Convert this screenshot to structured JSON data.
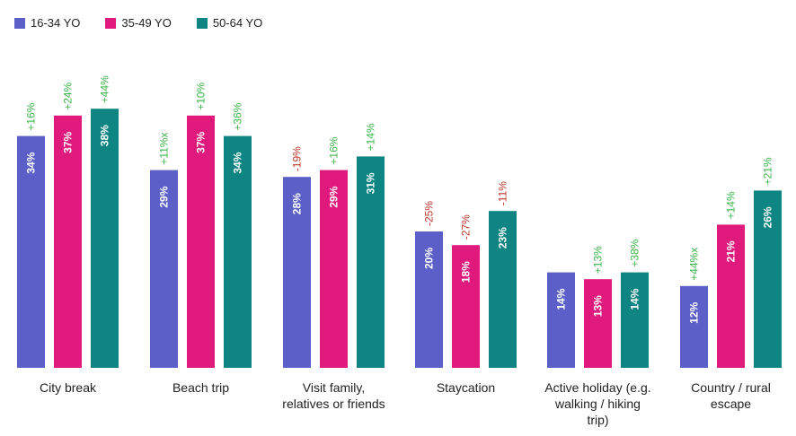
{
  "chart_data": {
    "type": "bar",
    "title": "",
    "xlabel": "",
    "ylabel": "",
    "ylim": [
      0,
      40
    ],
    "grid": false,
    "legend_placement": "top-left",
    "categories": [
      [
        "City break"
      ],
      [
        "Beach trip"
      ],
      [
        "Visit family,",
        "relatives or friends"
      ],
      [
        "Staycation"
      ],
      [
        "Active holiday (e.g.",
        "walking / hiking",
        "trip)"
      ],
      [
        "Country / rural",
        "escape"
      ]
    ],
    "series": [
      {
        "name": "16-34 YO",
        "color": "#5b5fc7",
        "values": [
          34,
          29,
          28,
          20,
          14,
          12
        ],
        "labels": [
          "34%",
          "29%",
          "28%",
          "20%",
          "14%",
          "12%"
        ],
        "changes": [
          "+16%",
          "+11%x",
          "-19%",
          "-25%",
          "",
          "+44%x"
        ]
      },
      {
        "name": "35-49 YO",
        "color": "#e0197d",
        "values": [
          37,
          37,
          29,
          18,
          13,
          21
        ],
        "labels": [
          "37%",
          "37%",
          "29%",
          "18%",
          "13%",
          "21%"
        ],
        "changes": [
          "+24%",
          "+10%",
          "+16%",
          "-27%",
          "+13%",
          "+14%"
        ]
      },
      {
        "name": "50-64 YO",
        "color": "#0e8582",
        "values": [
          38,
          34,
          31,
          23,
          14,
          26
        ],
        "labels": [
          "38%",
          "34%",
          "31%",
          "23%",
          "14%",
          "26%"
        ],
        "changes": [
          "+44%",
          "+36%",
          "+14%",
          "-11%",
          "+38%",
          "+21%"
        ]
      }
    ],
    "change_colors": {
      "positive": "#3cb54a",
      "negative": "#c0392b"
    }
  }
}
